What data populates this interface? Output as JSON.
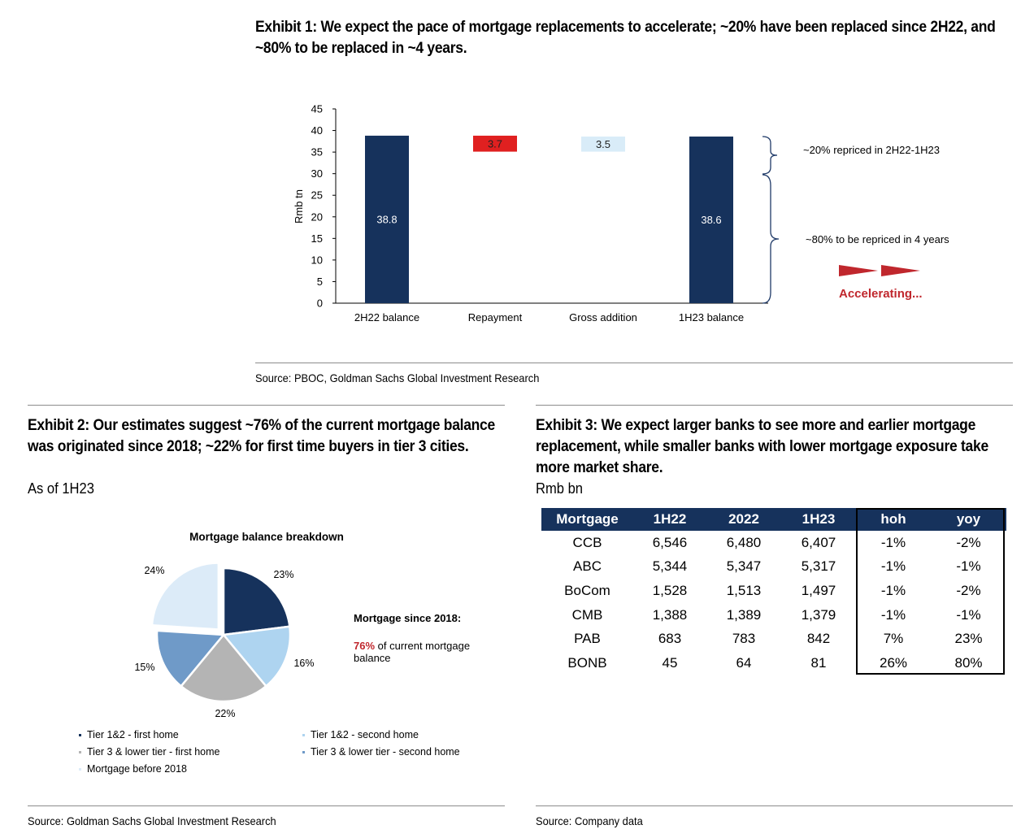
{
  "exhibit1": {
    "title": "Exhibit 1: We expect the pace of mortgage replacements to accelerate; ~20% have been replaced since 2H22, and ~80% to be replaced in ~4 years.",
    "source": "Source: PBOC, Goldman Sachs Global Investment Research",
    "annotations": {
      "repriced_20": "~20% repriced in 2H22-1H23",
      "repriced_80": "~80% to be repriced in 4 years",
      "accelerating": "Accelerating..."
    }
  },
  "exhibit2": {
    "title": "Exhibit 2: Our estimates suggest ~76% of the current mortgage balance was originated since 2018; ~22% for first time buyers in tier 3 cities.",
    "subtitle": "As of 1H23",
    "source": "Source: Goldman Sachs Global Investment Research",
    "callout_title": "Mortgage since 2018:",
    "callout_pct": "76%",
    "callout_text": " of current mortgage balance"
  },
  "exhibit3": {
    "title": "Exhibit 3: We expect larger banks to see more and earlier mortgage replacement, while smaller banks with lower mortgage exposure take more market share.",
    "subtitle": "Rmb bn",
    "source": "Source: Company data",
    "headers": [
      "Mortgage",
      "1H22",
      "2022",
      "1H23",
      "hoh",
      "yoy"
    ],
    "rows": [
      [
        "CCB",
        "6,546",
        "6,480",
        "6,407",
        "-1%",
        "-2%"
      ],
      [
        "ABC",
        "5,344",
        "5,347",
        "5,317",
        "-1%",
        "-1%"
      ],
      [
        "BoCom",
        "1,528",
        "1,513",
        "1,497",
        "-1%",
        "-2%"
      ],
      [
        "CMB",
        "1,388",
        "1,389",
        "1,379",
        "-1%",
        "-1%"
      ],
      [
        "PAB",
        "683",
        "783",
        "842",
        "7%",
        "23%"
      ],
      [
        "BONB",
        "45",
        "64",
        "81",
        "26%",
        "80%"
      ]
    ]
  },
  "chart_data": [
    {
      "type": "bar",
      "subtype": "waterfall",
      "title": "",
      "xlabel": "",
      "ylabel": "Rmb tn",
      "ylim": [
        0,
        45
      ],
      "yticks": [
        0,
        5,
        10,
        15,
        20,
        25,
        30,
        35,
        40,
        45
      ],
      "categories": [
        "2H22 balance",
        "Repayment",
        "Gross addition",
        "1H23 balance"
      ],
      "bars": [
        {
          "category": "2H22 balance",
          "base": 0,
          "top": 38.8,
          "label": "38.8",
          "color": "#16325c"
        },
        {
          "category": "Repayment",
          "base": 35.1,
          "top": 38.8,
          "label": "3.7",
          "color": "#e02020"
        },
        {
          "category": "Gross addition",
          "base": 35.1,
          "top": 38.6,
          "label": "3.5",
          "color": "#d9ecf8"
        },
        {
          "category": "1H23 balance",
          "base": 0,
          "top": 38.6,
          "label": "38.6",
          "color": "#16325c"
        }
      ],
      "grid": false,
      "legend": "none"
    },
    {
      "type": "pie",
      "title": "Mortgage balance breakdown",
      "slices": [
        {
          "name": "Tier 1&2 - first home",
          "value": 23,
          "label": "23%",
          "color": "#16325c"
        },
        {
          "name": "Tier 1&2 - second home",
          "value": 16,
          "label": "16%",
          "color": "#aed4f0"
        },
        {
          "name": "Tier 3 & lower tier - first home",
          "value": 22,
          "label": "22%",
          "color": "#b4b4b4"
        },
        {
          "name": "Tier  3 & lower tier - second home",
          "value": 15,
          "label": "15%",
          "color": "#6f9ac8"
        },
        {
          "name": "Mortgage before 2018",
          "value": 24,
          "label": "24%",
          "color": "#dcebf8",
          "exploded": true
        }
      ],
      "legend": "bottom"
    }
  ]
}
